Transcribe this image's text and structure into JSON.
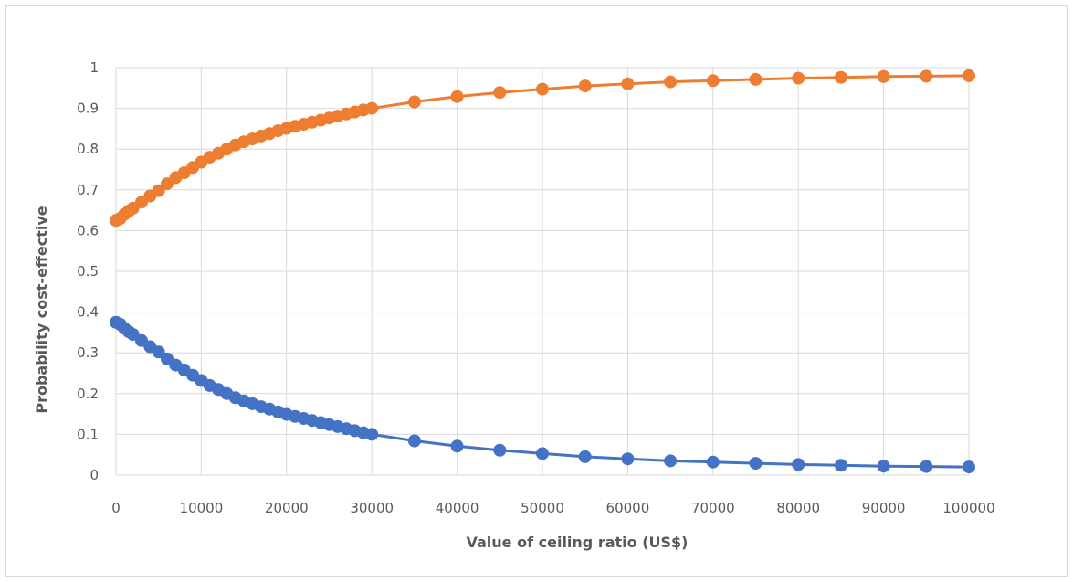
{
  "chart_data": {
    "type": "line",
    "title": "",
    "xlabel": "Value of ceiling ratio (US$)",
    "ylabel": "Probability cost-effective",
    "xlim": [
      0,
      100000
    ],
    "ylim": [
      0,
      1
    ],
    "x_ticks": [
      "0",
      "10000",
      "20000",
      "30000",
      "40000",
      "50000",
      "60000",
      "70000",
      "80000",
      "90000",
      "100000"
    ],
    "y_ticks": [
      "0",
      "0.1",
      "0.2",
      "0.3",
      "0.4",
      "0.5",
      "0.6",
      "0.7",
      "0.8",
      "0.9",
      "1"
    ],
    "grid": true,
    "legend": "none",
    "series": [
      {
        "color": "#ED7D31",
        "points": [
          [
            0,
            0.625
          ],
          [
            500,
            0.63
          ],
          [
            1000,
            0.64
          ],
          [
            1500,
            0.648
          ],
          [
            2000,
            0.655
          ],
          [
            3000,
            0.67
          ],
          [
            4000,
            0.685
          ],
          [
            5000,
            0.698
          ],
          [
            6000,
            0.715
          ],
          [
            7000,
            0.73
          ],
          [
            8000,
            0.742
          ],
          [
            9000,
            0.755
          ],
          [
            10000,
            0.768
          ],
          [
            11000,
            0.78
          ],
          [
            12000,
            0.79
          ],
          [
            13000,
            0.8
          ],
          [
            14000,
            0.81
          ],
          [
            15000,
            0.818
          ],
          [
            16000,
            0.825
          ],
          [
            17000,
            0.832
          ],
          [
            18000,
            0.838
          ],
          [
            19000,
            0.845
          ],
          [
            20000,
            0.851
          ],
          [
            21000,
            0.856
          ],
          [
            22000,
            0.861
          ],
          [
            23000,
            0.866
          ],
          [
            24000,
            0.871
          ],
          [
            25000,
            0.876
          ],
          [
            26000,
            0.881
          ],
          [
            27000,
            0.886
          ],
          [
            28000,
            0.891
          ],
          [
            29000,
            0.896
          ],
          [
            30000,
            0.9
          ],
          [
            35000,
            0.916
          ],
          [
            40000,
            0.929
          ],
          [
            45000,
            0.939
          ],
          [
            50000,
            0.947
          ],
          [
            55000,
            0.955
          ],
          [
            60000,
            0.96
          ],
          [
            65000,
            0.965
          ],
          [
            70000,
            0.968
          ],
          [
            75000,
            0.971
          ],
          [
            80000,
            0.974
          ],
          [
            85000,
            0.976
          ],
          [
            90000,
            0.978
          ],
          [
            95000,
            0.979
          ],
          [
            100000,
            0.98
          ]
        ]
      },
      {
        "color": "#4472C4",
        "points": [
          [
            0,
            0.375
          ],
          [
            500,
            0.37
          ],
          [
            1000,
            0.36
          ],
          [
            1500,
            0.352
          ],
          [
            2000,
            0.345
          ],
          [
            3000,
            0.33
          ],
          [
            4000,
            0.315
          ],
          [
            5000,
            0.302
          ],
          [
            6000,
            0.285
          ],
          [
            7000,
            0.27
          ],
          [
            8000,
            0.258
          ],
          [
            9000,
            0.245
          ],
          [
            10000,
            0.232
          ],
          [
            11000,
            0.22
          ],
          [
            12000,
            0.21
          ],
          [
            13000,
            0.2
          ],
          [
            14000,
            0.19
          ],
          [
            15000,
            0.182
          ],
          [
            16000,
            0.175
          ],
          [
            17000,
            0.168
          ],
          [
            18000,
            0.162
          ],
          [
            19000,
            0.155
          ],
          [
            20000,
            0.149
          ],
          [
            21000,
            0.144
          ],
          [
            22000,
            0.139
          ],
          [
            23000,
            0.134
          ],
          [
            24000,
            0.129
          ],
          [
            25000,
            0.124
          ],
          [
            26000,
            0.119
          ],
          [
            27000,
            0.114
          ],
          [
            28000,
            0.109
          ],
          [
            29000,
            0.104
          ],
          [
            30000,
            0.1
          ],
          [
            35000,
            0.084
          ],
          [
            40000,
            0.071
          ],
          [
            45000,
            0.061
          ],
          [
            50000,
            0.053
          ],
          [
            55000,
            0.045
          ],
          [
            60000,
            0.04
          ],
          [
            65000,
            0.035
          ],
          [
            70000,
            0.032
          ],
          [
            75000,
            0.029
          ],
          [
            80000,
            0.026
          ],
          [
            85000,
            0.024
          ],
          [
            90000,
            0.022
          ],
          [
            95000,
            0.021
          ],
          [
            100000,
            0.02
          ]
        ]
      }
    ],
    "gridline_color": "#d9d9d9",
    "text_color": "#595959"
  }
}
